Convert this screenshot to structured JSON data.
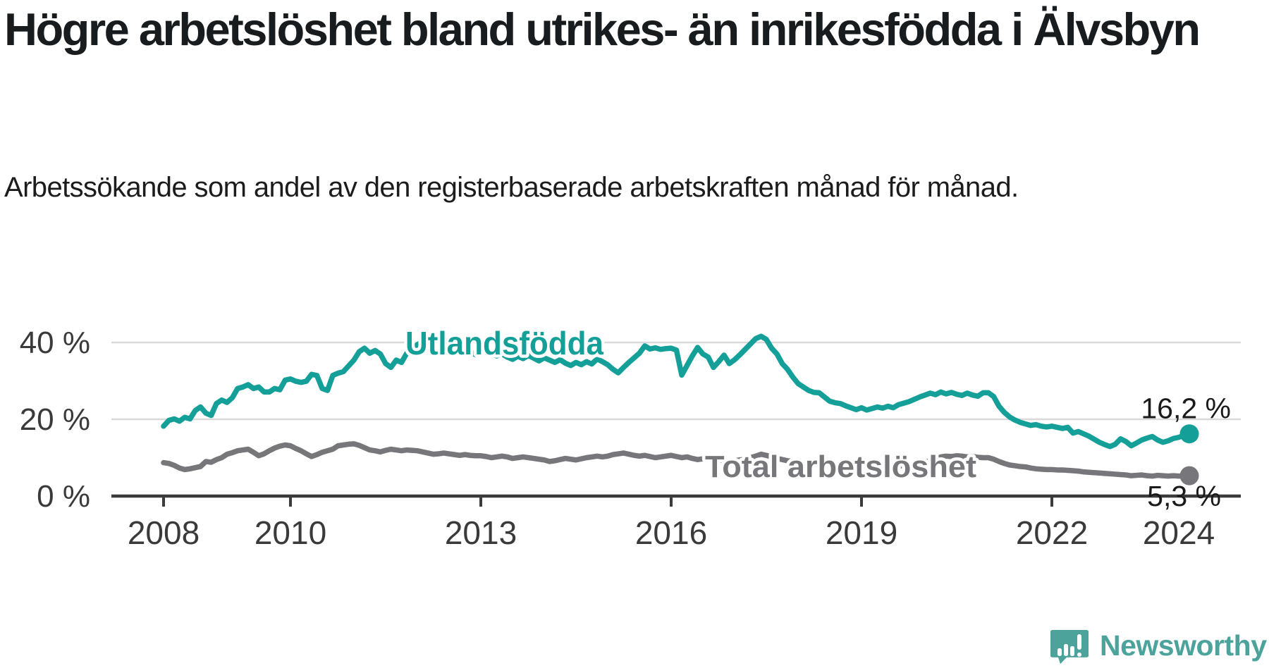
{
  "title": "Högre arbetslöshet bland utrikes- än inrikesfödda i Älvsbyn",
  "subtitle": "Arbetssökande som andel av den registerbaserade arbetskraften månad för månad.",
  "footer": {
    "brand": "Newsworthy",
    "logo_icon": "speech-bubble-bar-chart-exclamation"
  },
  "colors": {
    "foreign_born_line": "#14A099",
    "total_line": "#77777B",
    "gridline": "#D9D9D9",
    "axis_line": "#3C3C3C",
    "axis_text": "#3A3A3A",
    "annotation_text": "#1A1A1A",
    "brand_teal": "#4BA39B"
  },
  "chart_data": {
    "type": "line",
    "title": "Högre arbetslöshet bland utrikes- än inrikesfödda i Älvsbyn",
    "subtitle": "Arbetssökande som andel av den registerbaserade arbetskraften månad för månad.",
    "unit": "%",
    "frequency": "monthly",
    "x_start": "2008-01",
    "x_end": "2024-03",
    "xlim": [
      2008,
      2024.25
    ],
    "ylim": [
      0,
      44
    ],
    "grid": "horizontal",
    "legend_position": "inline-labels",
    "x_axis": {
      "tick_years": [
        2008,
        2010,
        2013,
        2016,
        2019,
        2022
      ],
      "labels": [
        {
          "t": 2008,
          "text": "2008"
        },
        {
          "t": 2010,
          "text": "2010"
        },
        {
          "t": 2013,
          "text": "2013"
        },
        {
          "t": 2016,
          "text": "2016"
        },
        {
          "t": 2019,
          "text": "2019"
        },
        {
          "t": 2022,
          "text": "2022"
        },
        {
          "t": 2024,
          "text": "2024"
        }
      ]
    },
    "y_axis": {
      "ticks": [
        {
          "v": 0,
          "label": "0 %"
        },
        {
          "v": 20,
          "label": "20 %"
        },
        {
          "v": 40,
          "label": "40 %"
        }
      ]
    },
    "series": [
      {
        "id": "total",
        "name": "Total arbetslöshet",
        "color": "#77777B",
        "end_label": "5,3 %",
        "end_value": 5.3,
        "values": [
          8.7,
          8.5,
          8.0,
          7.3,
          6.9,
          7.1,
          7.4,
          7.7,
          9.0,
          8.8,
          9.5,
          10.0,
          10.9,
          11.3,
          11.8,
          12.0,
          12.2,
          11.4,
          10.5,
          11.0,
          11.8,
          12.5,
          13.0,
          13.3,
          13.1,
          12.4,
          11.8,
          11.0,
          10.3,
          10.8,
          11.4,
          11.8,
          12.2,
          13.1,
          13.3,
          13.5,
          13.6,
          13.2,
          12.6,
          12.0,
          11.8,
          11.5,
          11.9,
          12.2,
          12.0,
          11.8,
          12.0,
          11.9,
          11.8,
          11.5,
          11.2,
          10.9,
          11.0,
          11.2,
          11.0,
          10.8,
          10.6,
          10.8,
          10.6,
          10.5,
          10.5,
          10.3,
          10.0,
          10.2,
          10.4,
          10.2,
          9.8,
          10.0,
          10.2,
          10.0,
          9.8,
          9.6,
          9.4,
          9.0,
          9.2,
          9.5,
          9.8,
          9.6,
          9.4,
          9.7,
          10.0,
          10.2,
          10.4,
          10.2,
          10.4,
          10.8,
          11.0,
          11.2,
          10.9,
          10.6,
          10.4,
          10.6,
          10.3,
          10.0,
          10.2,
          10.4,
          10.6,
          10.3,
          10.0,
          10.2,
          9.8,
          9.5,
          9.7,
          9.9,
          9.6,
          9.4,
          9.2,
          9.0,
          9.2,
          9.4,
          9.6,
          10.0,
          10.4,
          10.9,
          10.6,
          10.2,
          9.8,
          9.5,
          9.2,
          9.0,
          8.8,
          8.6,
          8.8,
          8.5,
          8.3,
          8.5,
          8.2,
          8.0,
          8.2,
          8.0,
          7.9,
          8.0,
          8.1,
          7.9,
          7.8,
          8.0,
          7.8,
          7.7,
          7.9,
          7.8,
          8.0,
          8.2,
          8.4,
          8.6,
          8.9,
          9.2,
          9.6,
          10.2,
          10.4,
          10.3,
          10.5,
          10.4,
          10.2,
          10.3,
          10.1,
          10.0,
          10.0,
          9.6,
          9.0,
          8.5,
          8.1,
          7.9,
          7.7,
          7.6,
          7.3,
          7.1,
          7.0,
          6.9,
          6.9,
          6.8,
          6.8,
          6.7,
          6.6,
          6.5,
          6.3,
          6.2,
          6.1,
          6.0,
          5.9,
          5.8,
          5.7,
          5.6,
          5.5,
          5.3,
          5.4,
          5.5,
          5.3,
          5.2,
          5.4,
          5.3,
          5.2,
          5.3,
          5.2,
          5.3,
          5.3
        ]
      },
      {
        "id": "utlandsfodda",
        "name": "Utlandsfödda",
        "color": "#14A099",
        "end_label": "16,2 %",
        "end_value": 16.2,
        "values": [
          18.2,
          19.7,
          20.1,
          19.5,
          20.5,
          20.1,
          22.3,
          23.2,
          21.6,
          21.0,
          24.1,
          25.0,
          24.4,
          25.6,
          28.0,
          28.4,
          29.0,
          28.0,
          28.4,
          27.1,
          27.1,
          28.0,
          27.7,
          30.2,
          30.5,
          29.9,
          29.6,
          29.9,
          31.7,
          31.4,
          28.0,
          27.5,
          31.4,
          32.0,
          32.4,
          33.9,
          35.4,
          37.6,
          38.5,
          37.2,
          37.9,
          37.0,
          34.5,
          33.5,
          35.4,
          34.8,
          37.2,
          38.5,
          39.4,
          40.3,
          39.6,
          38.8,
          39.8,
          38.2,
          37.5,
          38.6,
          37.8,
          36.9,
          37.6,
          36.8,
          37.4,
          38.0,
          37.2,
          36.5,
          37.0,
          36.2,
          35.6,
          36.4,
          35.8,
          36.6,
          35.9,
          35.2,
          36.0,
          35.4,
          34.8,
          35.5,
          34.6,
          34.0,
          34.8,
          34.2,
          35.0,
          34.4,
          35.7,
          35.0,
          34.2,
          33.0,
          32.1,
          33.5,
          34.8,
          36.0,
          37.2,
          39.1,
          38.3,
          38.6,
          38.2,
          38.4,
          38.5,
          38.0,
          31.5,
          34.0,
          36.5,
          38.7,
          37.0,
          36.2,
          33.5,
          35.0,
          36.7,
          34.5,
          35.5,
          36.8,
          38.2,
          39.6,
          41.0,
          41.6,
          40.8,
          38.5,
          37.0,
          34.5,
          33.0,
          31.0,
          29.3,
          28.4,
          27.5,
          27.0,
          26.9,
          25.8,
          24.7,
          24.3,
          24.1,
          23.5,
          23.0,
          22.5,
          23.0,
          22.4,
          22.8,
          23.2,
          22.9,
          23.4,
          23.0,
          23.8,
          24.2,
          24.6,
          25.2,
          25.8,
          26.3,
          26.8,
          26.4,
          27.1,
          26.6,
          27.0,
          26.5,
          26.2,
          26.8,
          26.3,
          26.0,
          26.9,
          26.9,
          25.9,
          23.4,
          21.8,
          20.6,
          19.8,
          19.2,
          18.8,
          18.4,
          18.6,
          18.2,
          18.0,
          18.2,
          17.9,
          17.6,
          17.9,
          16.4,
          16.8,
          16.2,
          15.6,
          14.8,
          14.0,
          13.4,
          12.9,
          13.5,
          14.9,
          14.2,
          13.1,
          13.8,
          14.6,
          15.1,
          15.5,
          14.6,
          14.0,
          14.4,
          15.0,
          15.3,
          15.8,
          16.2
        ]
      }
    ]
  }
}
